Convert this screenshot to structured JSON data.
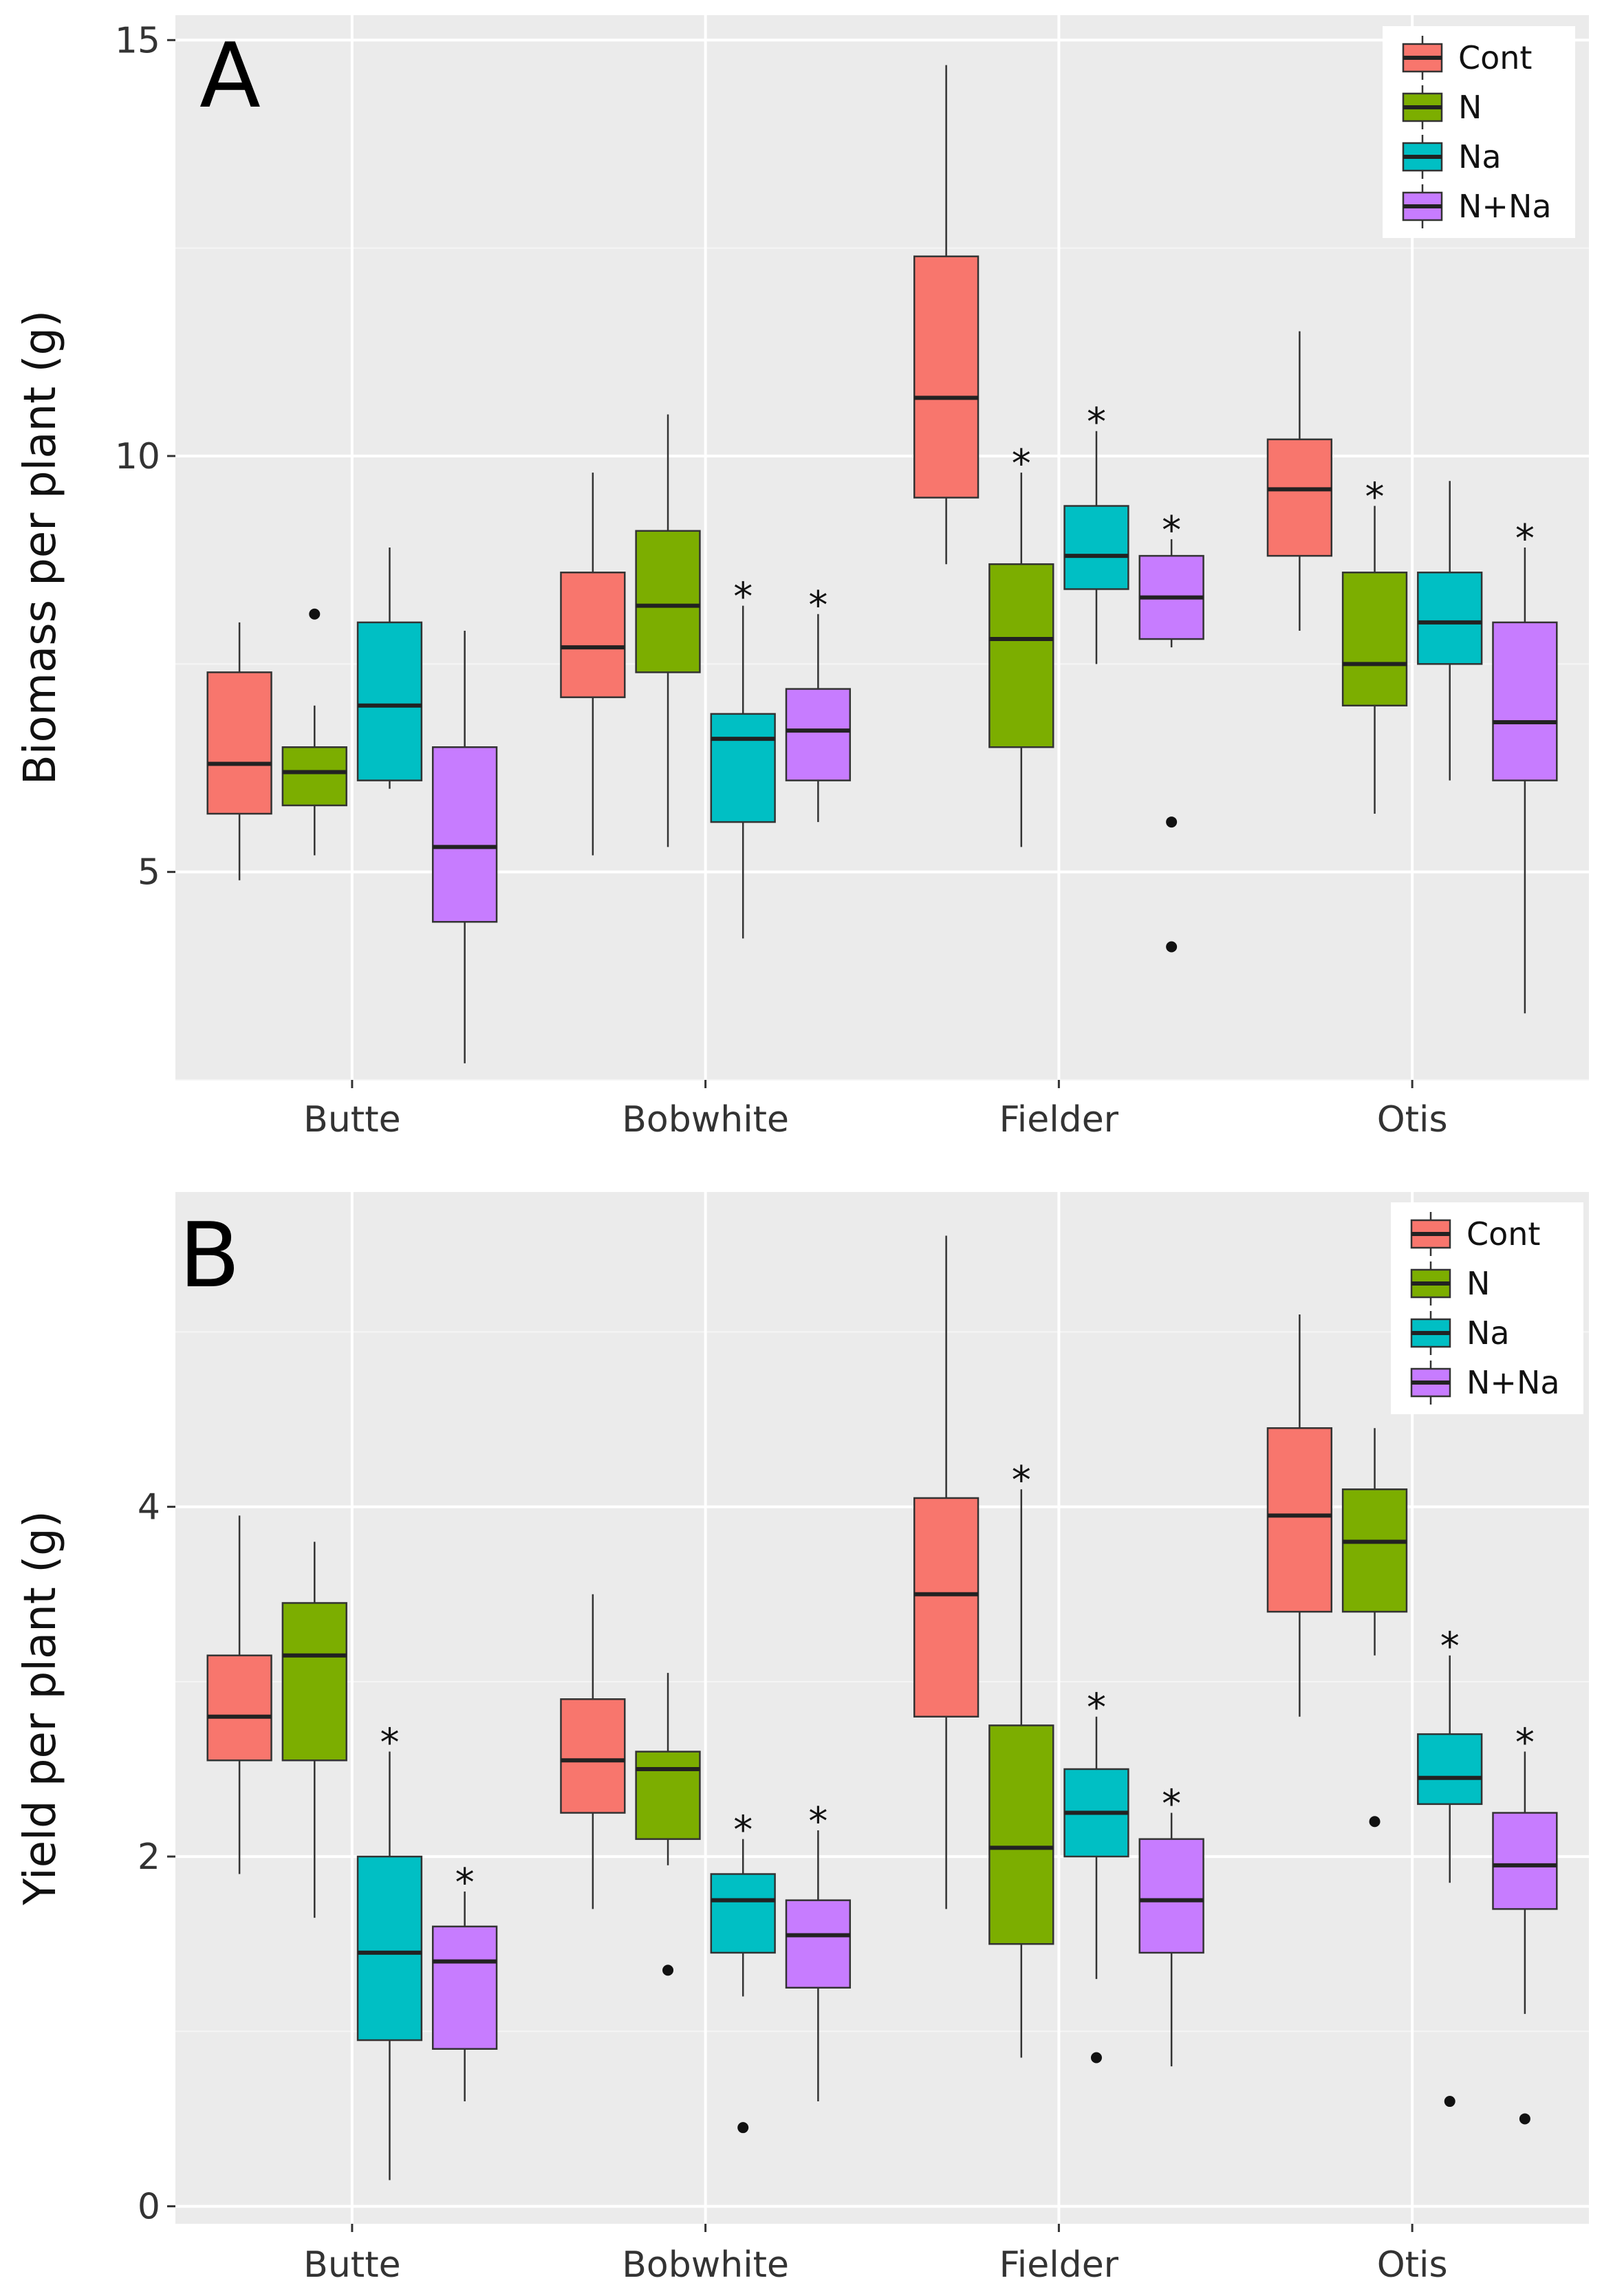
{
  "chart_data": [
    {
      "type": "box",
      "panel_label": "A",
      "ylabel": "Biomass per plant (g)",
      "xlabel": "",
      "ylim": [
        2.5,
        15.3
      ],
      "yticks": [
        5,
        10,
        15
      ],
      "grid": true,
      "legend_position": "top-right",
      "categories": [
        "Butte",
        "Bobwhite",
        "Fielder",
        "Otis"
      ],
      "series": [
        {
          "name": "Cont",
          "color": "#f8766d",
          "boxes": [
            {
              "min": 4.9,
              "q1": 5.7,
              "median": 6.3,
              "q3": 7.4,
              "max": 8.0,
              "outliers": [],
              "sig": false
            },
            {
              "min": 5.2,
              "q1": 7.1,
              "median": 7.7,
              "q3": 8.6,
              "max": 9.8,
              "outliers": [],
              "sig": false
            },
            {
              "min": 8.7,
              "q1": 9.5,
              "median": 10.7,
              "q3": 12.4,
              "max": 14.7,
              "outliers": [],
              "sig": false
            },
            {
              "min": 7.9,
              "q1": 8.8,
              "median": 9.6,
              "q3": 10.2,
              "max": 11.5,
              "outliers": [],
              "sig": false
            }
          ]
        },
        {
          "name": "N",
          "color": "#7cae00",
          "boxes": [
            {
              "min": 5.2,
              "q1": 5.8,
              "median": 6.2,
              "q3": 6.5,
              "max": 7.0,
              "outliers": [
                8.1
              ],
              "sig": false
            },
            {
              "min": 5.3,
              "q1": 7.4,
              "median": 8.2,
              "q3": 9.1,
              "max": 10.5,
              "outliers": [],
              "sig": false
            },
            {
              "min": 5.3,
              "q1": 6.5,
              "median": 7.8,
              "q3": 8.7,
              "max": 9.8,
              "outliers": [],
              "sig": true
            },
            {
              "min": 5.7,
              "q1": 7.0,
              "median": 7.5,
              "q3": 8.6,
              "max": 9.4,
              "outliers": [],
              "sig": true
            }
          ]
        },
        {
          "name": "Na",
          "color": "#00bfc4",
          "boxes": [
            {
              "min": 6.0,
              "q1": 6.1,
              "median": 7.0,
              "q3": 8.0,
              "max": 8.9,
              "outliers": [],
              "sig": false
            },
            {
              "min": 4.2,
              "q1": 5.6,
              "median": 6.6,
              "q3": 6.9,
              "max": 8.2,
              "outliers": [],
              "sig": true
            },
            {
              "min": 7.5,
              "q1": 8.4,
              "median": 8.8,
              "q3": 9.4,
              "max": 10.3,
              "outliers": [],
              "sig": true
            },
            {
              "min": 6.1,
              "q1": 7.5,
              "median": 8.0,
              "q3": 8.6,
              "max": 9.7,
              "outliers": [],
              "sig": false
            }
          ]
        },
        {
          "name": "N+Na",
          "color": "#c77cff",
          "boxes": [
            {
              "min": 2.7,
              "q1": 4.4,
              "median": 5.3,
              "q3": 6.5,
              "max": 7.9,
              "outliers": [],
              "sig": false
            },
            {
              "min": 5.6,
              "q1": 6.1,
              "median": 6.7,
              "q3": 7.2,
              "max": 8.1,
              "outliers": [],
              "sig": true
            },
            {
              "min": 7.7,
              "q1": 7.8,
              "median": 8.3,
              "q3": 8.8,
              "max": 9.0,
              "outliers": [
                5.6,
                4.1
              ],
              "sig": true
            },
            {
              "min": 3.3,
              "q1": 6.1,
              "median": 6.8,
              "q3": 8.0,
              "max": 8.9,
              "outliers": [],
              "sig": true
            }
          ]
        }
      ]
    },
    {
      "type": "box",
      "panel_label": "B",
      "ylabel": "Yield per plant (g)",
      "xlabel": "",
      "ylim": [
        -0.1,
        5.8
      ],
      "yticks": [
        0,
        2,
        4
      ],
      "grid": true,
      "legend_position": "top-right",
      "categories": [
        "Butte",
        "Bobwhite",
        "Fielder",
        "Otis"
      ],
      "series": [
        {
          "name": "Cont",
          "color": "#f8766d",
          "boxes": [
            {
              "min": 1.9,
              "q1": 2.55,
              "median": 2.8,
              "q3": 3.15,
              "max": 3.95,
              "outliers": [],
              "sig": false
            },
            {
              "min": 1.7,
              "q1": 2.25,
              "median": 2.55,
              "q3": 2.9,
              "max": 3.5,
              "outliers": [],
              "sig": false
            },
            {
              "min": 1.7,
              "q1": 2.8,
              "median": 3.5,
              "q3": 4.05,
              "max": 5.55,
              "outliers": [],
              "sig": false
            },
            {
              "min": 2.8,
              "q1": 3.4,
              "median": 3.95,
              "q3": 4.45,
              "max": 5.1,
              "outliers": [],
              "sig": false
            }
          ]
        },
        {
          "name": "N",
          "color": "#7cae00",
          "boxes": [
            {
              "min": 1.65,
              "q1": 2.55,
              "median": 3.15,
              "q3": 3.45,
              "max": 3.8,
              "outliers": [],
              "sig": false
            },
            {
              "min": 1.95,
              "q1": 2.1,
              "median": 2.5,
              "q3": 2.6,
              "max": 3.05,
              "outliers": [
                1.35
              ],
              "sig": false
            },
            {
              "min": 0.85,
              "q1": 1.5,
              "median": 2.05,
              "q3": 2.75,
              "max": 4.1,
              "outliers": [],
              "sig": true
            },
            {
              "min": 3.15,
              "q1": 3.4,
              "median": 3.8,
              "q3": 4.1,
              "max": 4.45,
              "outliers": [
                2.2
              ],
              "sig": false
            }
          ]
        },
        {
          "name": "Na",
          "color": "#00bfc4",
          "boxes": [
            {
              "min": 0.15,
              "q1": 0.95,
              "median": 1.45,
              "q3": 2.0,
              "max": 2.6,
              "outliers": [],
              "sig": true
            },
            {
              "min": 1.2,
              "q1": 1.45,
              "median": 1.75,
              "q3": 1.9,
              "max": 2.1,
              "outliers": [
                0.45
              ],
              "sig": true
            },
            {
              "min": 1.3,
              "q1": 2.0,
              "median": 2.25,
              "q3": 2.5,
              "max": 2.8,
              "outliers": [
                0.85
              ],
              "sig": true
            },
            {
              "min": 1.85,
              "q1": 2.3,
              "median": 2.45,
              "q3": 2.7,
              "max": 3.15,
              "outliers": [
                0.6
              ],
              "sig": true
            }
          ]
        },
        {
          "name": "N+Na",
          "color": "#c77cff",
          "boxes": [
            {
              "min": 0.6,
              "q1": 0.9,
              "median": 1.4,
              "q3": 1.6,
              "max": 1.8,
              "outliers": [],
              "sig": true
            },
            {
              "min": 0.6,
              "q1": 1.25,
              "median": 1.55,
              "q3": 1.75,
              "max": 2.15,
              "outliers": [],
              "sig": true
            },
            {
              "min": 0.8,
              "q1": 1.45,
              "median": 1.75,
              "q3": 2.1,
              "max": 2.25,
              "outliers": [],
              "sig": true
            },
            {
              "min": 1.1,
              "q1": 1.7,
              "median": 1.95,
              "q3": 2.25,
              "max": 2.6,
              "outliers": [
                0.5
              ],
              "sig": true
            }
          ]
        }
      ]
    }
  ],
  "significance_marker": "*"
}
